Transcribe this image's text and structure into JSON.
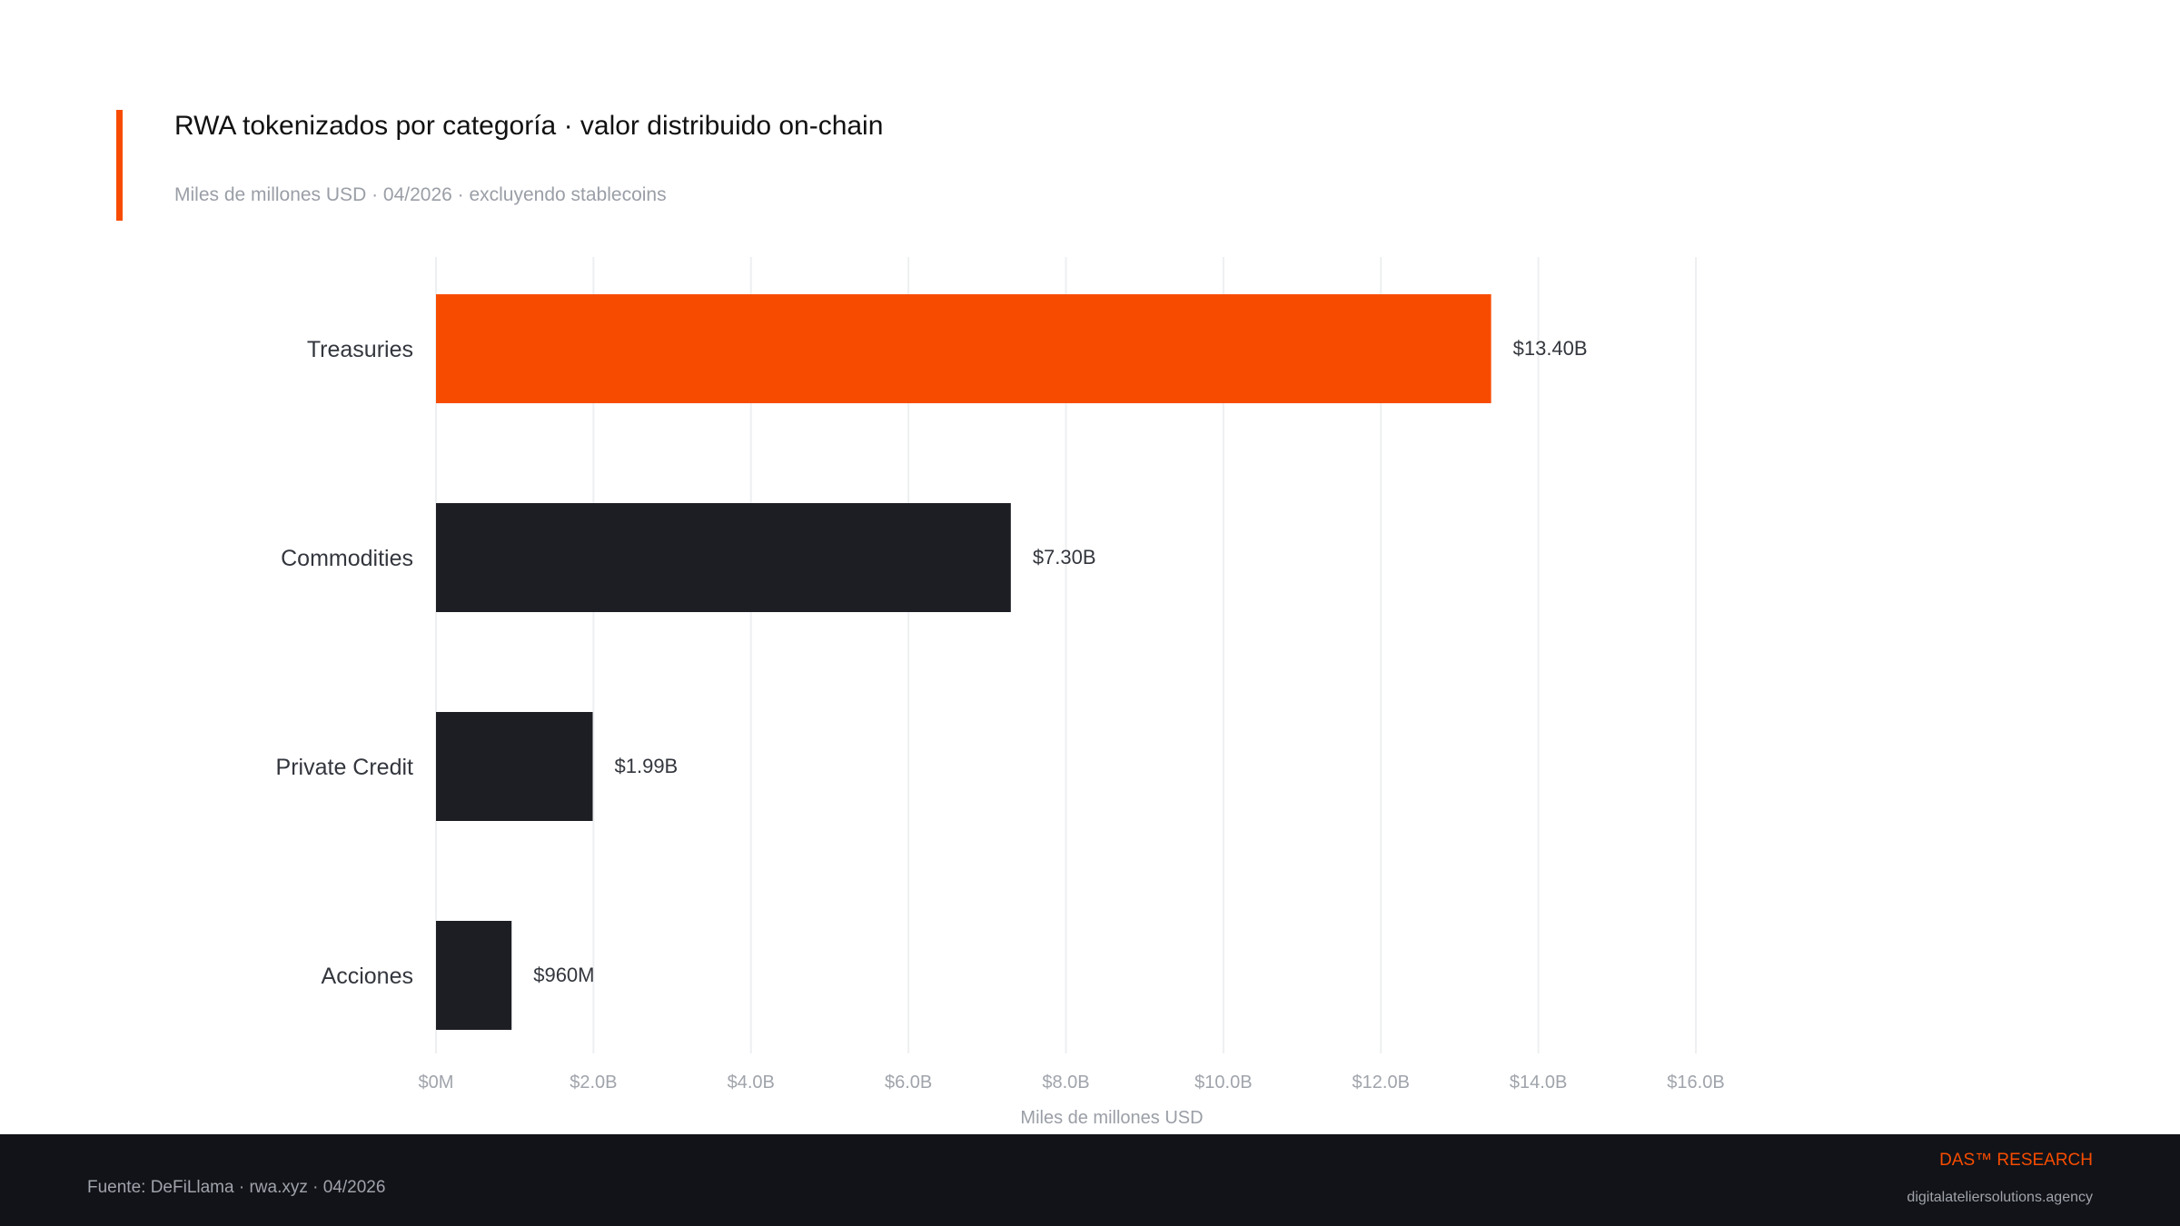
{
  "header": {
    "title": "RWA tokenizados por categoría · valor distribuido on-chain",
    "subtitle": "Miles de millones USD · 04/2026 · excluyendo stablecoins"
  },
  "chart_data": {
    "type": "bar",
    "orientation": "horizontal",
    "categories": [
      "Treasuries",
      "Commodities",
      "Private Credit",
      "Acciones"
    ],
    "values": [
      13.4,
      7.3,
      1.99,
      0.96
    ],
    "value_labels": [
      "$13.40B",
      "$7.30B",
      "$1.99B",
      "$960M"
    ],
    "bar_colors": [
      "#f74c00",
      "#1c1e24",
      "#1c1e24",
      "#1c1e24"
    ],
    "xlabel": "Miles de millones USD",
    "ylabel": "",
    "xlim": [
      0,
      16
    ],
    "x_ticks": [
      0,
      2,
      4,
      6,
      8,
      10,
      12,
      14,
      16
    ],
    "x_tick_labels": [
      "$0M",
      "$2.0B",
      "$4.0B",
      "$6.0B",
      "$8.0B",
      "$10.0B",
      "$12.0B",
      "$14.0B",
      "$16.0B"
    ],
    "grid": "vertical"
  },
  "footer": {
    "source": "Fuente: DeFiLlama · rwa.xyz · 04/2026",
    "brand": "DAS™ RESEARCH",
    "url": "digitalateliersolutions.agency"
  },
  "colors": {
    "accent": "#f74c00",
    "bar_default": "#1c1e24",
    "footer_bg": "#111318"
  }
}
